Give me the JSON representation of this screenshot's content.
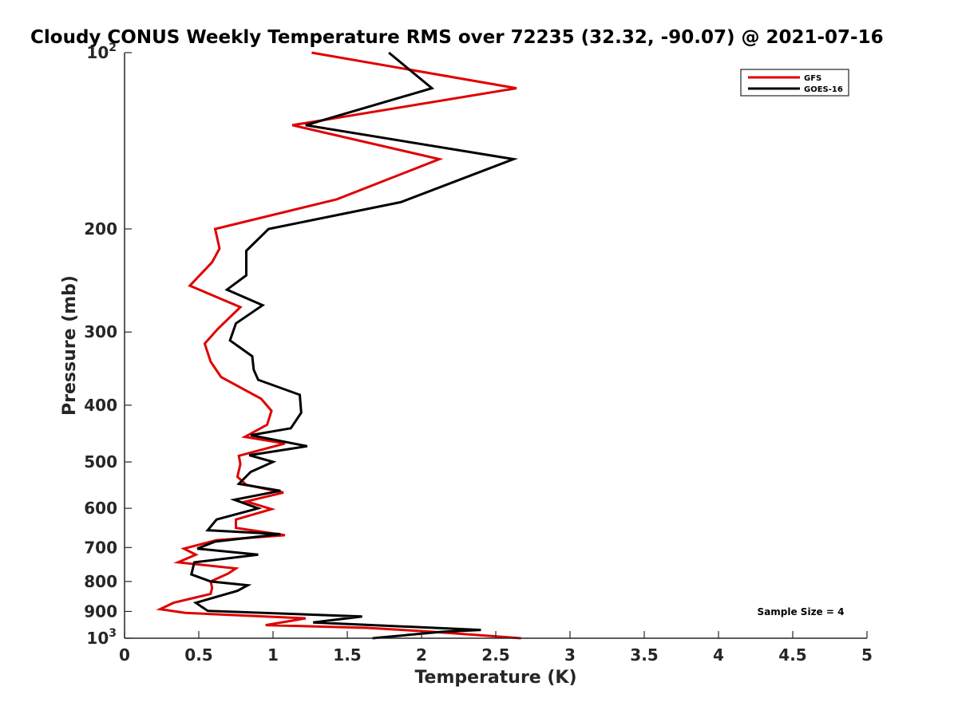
{
  "chart_data": {
    "type": "line",
    "title": "Cloudy CONUS Weekly Temperature RMS over 72235 (32.32, -90.07) @ 2021-07-16",
    "xlabel": "Temperature (K)",
    "ylabel": "Pressure (mb)",
    "xlim": [
      0,
      5
    ],
    "ylim": [
      100,
      1000
    ],
    "y_scale": "log",
    "y_reversed": true,
    "x_ticks": [
      "0",
      "0.5",
      "1",
      "1.5",
      "2",
      "2.5",
      "3",
      "3.5",
      "4",
      "4.5",
      "5"
    ],
    "y_ticks": [
      {
        "value": 100,
        "base": "10",
        "exp": "2"
      },
      {
        "value": 200,
        "label": "200"
      },
      {
        "value": 300,
        "label": "300"
      },
      {
        "value": 400,
        "label": "400"
      },
      {
        "value": 500,
        "label": "500"
      },
      {
        "value": 600,
        "label": "600"
      },
      {
        "value": 700,
        "label": "700"
      },
      {
        "value": 800,
        "label": "800"
      },
      {
        "value": 900,
        "label": "900"
      },
      {
        "value": 1000,
        "base": "10",
        "exp": "3"
      }
    ],
    "grid": false,
    "legend_position": "top-right",
    "annotation": "Sample Size = 4",
    "series": [
      {
        "name": "GFS",
        "color": "#e00000",
        "points": [
          [
            1.26,
            100
          ],
          [
            2.64,
            115
          ],
          [
            1.13,
            133
          ],
          [
            2.12,
            152
          ],
          [
            1.43,
            178
          ],
          [
            0.61,
            200
          ],
          [
            0.64,
            216
          ],
          [
            0.59,
            228
          ],
          [
            0.44,
            250
          ],
          [
            0.78,
            272
          ],
          [
            0.63,
            296
          ],
          [
            0.54,
            314
          ],
          [
            0.58,
            337
          ],
          [
            0.65,
            358
          ],
          [
            0.92,
            390
          ],
          [
            0.99,
            409
          ],
          [
            0.96,
            432
          ],
          [
            0.81,
            453
          ],
          [
            1.08,
            465
          ],
          [
            0.77,
            488
          ],
          [
            0.78,
            504
          ],
          [
            0.76,
            530
          ],
          [
            0.82,
            547
          ],
          [
            1.07,
            564
          ],
          [
            0.82,
            584
          ],
          [
            0.99,
            602
          ],
          [
            0.75,
            627
          ],
          [
            0.75,
            648
          ],
          [
            1.08,
            667
          ],
          [
            0.62,
            680
          ],
          [
            0.4,
            703
          ],
          [
            0.48,
            720
          ],
          [
            0.36,
            742
          ],
          [
            0.75,
            760
          ],
          [
            0.7,
            775
          ],
          [
            0.58,
            800
          ],
          [
            0.59,
            820
          ],
          [
            0.58,
            840
          ],
          [
            0.33,
            870
          ],
          [
            0.24,
            892
          ],
          [
            0.41,
            905
          ],
          [
            1.22,
            925
          ],
          [
            0.95,
            950
          ],
          [
            1.63,
            960
          ],
          [
            2.05,
            974
          ],
          [
            2.67,
            1000
          ]
        ]
      },
      {
        "name": "GOES-16",
        "color": "#000000",
        "points": [
          [
            1.78,
            100
          ],
          [
            2.07,
            115
          ],
          [
            1.22,
            133
          ],
          [
            2.62,
            152
          ],
          [
            1.86,
            180
          ],
          [
            0.97,
            200
          ],
          [
            0.82,
            218
          ],
          [
            0.82,
            240
          ],
          [
            0.69,
            254
          ],
          [
            0.93,
            270
          ],
          [
            0.75,
            290
          ],
          [
            0.71,
            310
          ],
          [
            0.86,
            330
          ],
          [
            0.87,
            348
          ],
          [
            0.9,
            362
          ],
          [
            1.18,
            384
          ],
          [
            1.19,
            412
          ],
          [
            1.12,
            438
          ],
          [
            0.85,
            450
          ],
          [
            1.23,
            470
          ],
          [
            0.84,
            487
          ],
          [
            1.0,
            500
          ],
          [
            0.85,
            520
          ],
          [
            0.77,
            545
          ],
          [
            1.05,
            560
          ],
          [
            0.74,
            580
          ],
          [
            0.9,
            600
          ],
          [
            0.62,
            627
          ],
          [
            0.56,
            654
          ],
          [
            1.05,
            664
          ],
          [
            0.61,
            684
          ],
          [
            0.49,
            703
          ],
          [
            0.9,
            720
          ],
          [
            0.47,
            742
          ],
          [
            0.45,
            778
          ],
          [
            0.58,
            800
          ],
          [
            0.83,
            812
          ],
          [
            0.76,
            830
          ],
          [
            0.48,
            870
          ],
          [
            0.56,
            898
          ],
          [
            1.6,
            918
          ],
          [
            1.27,
            940
          ],
          [
            2.4,
            968
          ],
          [
            2.14,
            975
          ],
          [
            1.67,
            1000
          ]
        ]
      }
    ]
  }
}
